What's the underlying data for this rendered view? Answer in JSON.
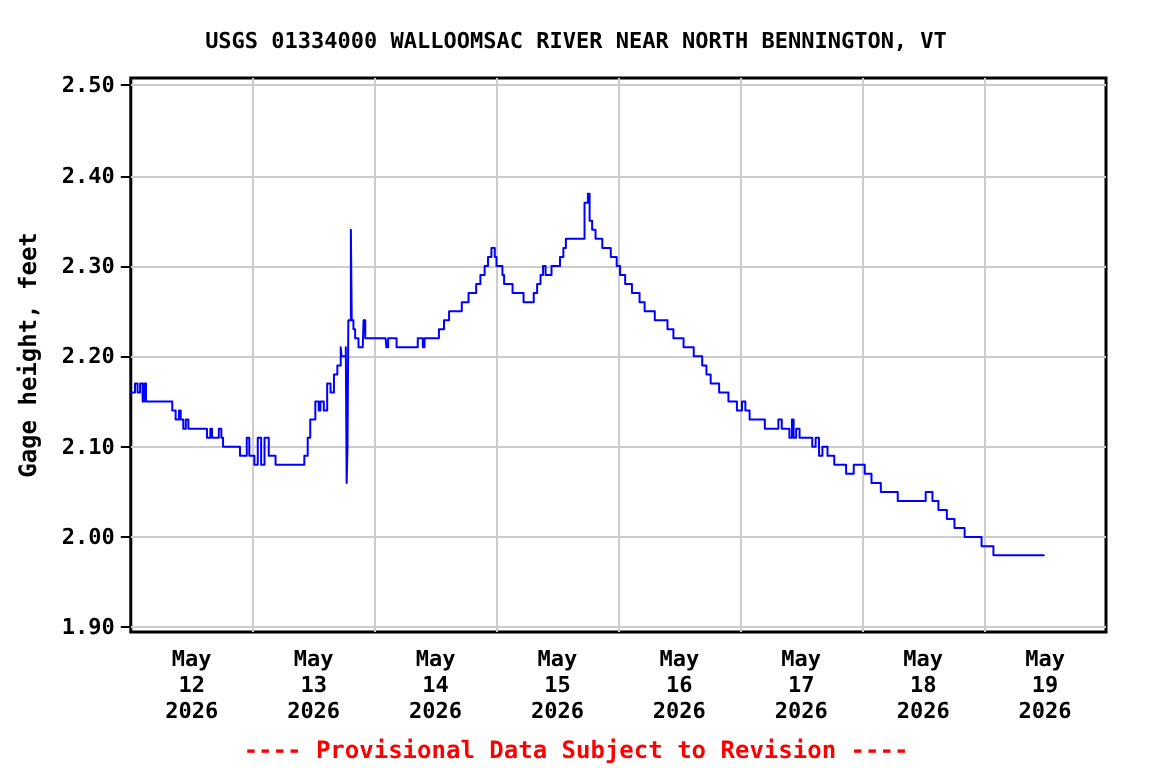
{
  "chart_data": {
    "type": "step",
    "title": "USGS 01334000 WALLOOMSAC RIVER NEAR NORTH BENNINGTON, VT",
    "ylabel": "Gage height, feet",
    "annotations": [
      "---- Provisional Data Subject to Revision ----"
    ],
    "x": [
      "2026-05-11T12:00",
      "2026-05-11T12:50",
      "2026-05-11T13:20",
      "2026-05-11T13:50",
      "2026-05-11T14:20",
      "2026-05-11T14:40",
      "2026-05-11T15:00",
      "2026-05-11T20:10",
      "2026-05-11T20:50",
      "2026-05-11T21:30",
      "2026-05-11T21:50",
      "2026-05-11T22:20",
      "2026-05-11T22:50",
      "2026-05-11T23:20",
      "2026-05-12T03:00",
      "2026-05-12T03:40",
      "2026-05-12T04:00",
      "2026-05-12T05:20",
      "2026-05-12T05:50",
      "2026-05-12T06:10",
      "2026-05-12T09:30",
      "2026-05-12T10:00",
      "2026-05-12T10:50",
      "2026-05-12T11:20",
      "2026-05-12T12:20",
      "2026-05-12T13:00",
      "2026-05-12T13:40",
      "2026-05-12T14:20",
      "2026-05-12T15:10",
      "2026-05-12T16:30",
      "2026-05-12T21:40",
      "2026-05-12T22:10",
      "2026-05-12T22:50",
      "2026-05-12T23:20",
      "2026-05-13T00:20",
      "2026-05-13T01:00",
      "2026-05-13T01:20",
      "2026-05-13T02:00",
      "2026-05-13T02:40",
      "2026-05-13T03:20",
      "2026-05-13T04:00",
      "2026-05-13T04:40",
      "2026-05-13T05:20",
      "2026-05-13T05:30",
      "2026-05-13T06:20",
      "2026-05-13T06:30",
      "2026-05-13T06:40",
      "2026-05-13T06:50",
      "2026-05-13T07:20",
      "2026-05-13T07:30",
      "2026-05-13T07:50",
      "2026-05-13T08:10",
      "2026-05-13T08:50",
      "2026-05-13T09:40",
      "2026-05-13T09:50",
      "2026-05-13T10:10",
      "2026-05-13T14:10",
      "2026-05-13T14:20",
      "2026-05-13T14:40",
      "2026-05-13T16:20",
      "2026-05-13T20:10",
      "2026-05-13T20:30",
      "2026-05-13T21:30",
      "2026-05-13T21:50",
      "2026-05-14T00:10",
      "2026-05-14T00:40",
      "2026-05-14T01:40",
      "2026-05-14T02:40",
      "2026-05-14T04:50",
      "2026-05-14T05:10",
      "2026-05-14T06:30",
      "2026-05-14T08:00",
      "2026-05-14T08:50",
      "2026-05-14T09:40",
      "2026-05-14T10:20",
      "2026-05-14T11:00",
      "2026-05-14T11:40",
      "2026-05-14T12:00",
      "2026-05-14T13:10",
      "2026-05-14T13:30",
      "2026-05-14T15:10",
      "2026-05-14T17:20",
      "2026-05-14T19:20",
      "2026-05-14T20:00",
      "2026-05-14T20:40",
      "2026-05-14T21:10",
      "2026-05-14T21:40",
      "2026-05-14T22:50",
      "2026-05-15T00:30",
      "2026-05-15T01:10",
      "2026-05-15T01:40",
      "2026-05-15T05:20",
      "2026-05-15T06:00",
      "2026-05-15T06:20",
      "2026-05-15T06:50",
      "2026-05-15T07:30",
      "2026-05-15T08:50",
      "2026-05-15T10:30",
      "2026-05-15T11:40",
      "2026-05-15T12:20",
      "2026-05-15T13:20",
      "2026-05-15T14:40",
      "2026-05-15T16:10",
      "2026-05-15T17:10",
      "2026-05-15T19:10",
      "2026-05-15T21:40",
      "2026-05-15T22:50",
      "2026-05-16T00:50",
      "2026-05-16T02:50",
      "2026-05-16T04:30",
      "2026-05-16T05:20",
      "2026-05-16T06:10",
      "2026-05-16T07:50",
      "2026-05-16T09:40",
      "2026-05-16T11:20",
      "2026-05-16T12:20",
      "2026-05-16T13:00",
      "2026-05-16T13:50",
      "2026-05-16T16:50",
      "2026-05-16T19:30",
      "2026-05-16T20:10",
      "2026-05-16T21:40",
      "2026-05-16T22:10",
      "2026-05-16T22:30",
      "2026-05-16T23:00",
      "2026-05-16T23:40",
      "2026-05-17T02:10",
      "2026-05-17T02:50",
      "2026-05-17T03:30",
      "2026-05-17T04:10",
      "2026-05-17T05:10",
      "2026-05-17T06:30",
      "2026-05-17T08:50",
      "2026-05-17T10:20",
      "2026-05-17T12:30",
      "2026-05-17T13:50",
      "2026-05-17T15:40",
      "2026-05-17T19:00",
      "2026-05-18T00:30",
      "2026-05-18T01:50",
      "2026-05-18T03:00",
      "2026-05-18T04:40",
      "2026-05-18T06:10",
      "2026-05-18T08:10",
      "2026-05-18T11:30",
      "2026-05-18T13:50",
      "2026-05-18T23:45"
    ],
    "series": [
      {
        "color": "#0000ff",
        "values": [
          2.16,
          2.17,
          2.16,
          2.17,
          2.15,
          2.17,
          2.15,
          2.14,
          2.13,
          2.14,
          2.13,
          2.12,
          2.13,
          2.12,
          2.11,
          2.12,
          2.11,
          2.12,
          2.11,
          2.1,
          2.09,
          2.09,
          2.11,
          2.09,
          2.08,
          2.11,
          2.08,
          2.11,
          2.09,
          2.08,
          2.08,
          2.09,
          2.11,
          2.13,
          2.15,
          2.14,
          2.15,
          2.14,
          2.17,
          2.16,
          2.18,
          2.19,
          2.21,
          2.2,
          2.21,
          2.06,
          2.1,
          2.24,
          2.34,
          2.24,
          2.23,
          2.22,
          2.21,
          2.21,
          2.24,
          2.22,
          2.22,
          2.21,
          2.22,
          2.21,
          2.21,
          2.22,
          2.21,
          2.22,
          2.22,
          2.23,
          2.24,
          2.25,
          2.25,
          2.26,
          2.27,
          2.28,
          2.29,
          2.3,
          2.31,
          2.32,
          2.31,
          2.3,
          2.29,
          2.28,
          2.27,
          2.26,
          2.27,
          2.28,
          2.29,
          2.3,
          2.29,
          2.3,
          2.31,
          2.32,
          2.33,
          2.37,
          2.38,
          2.35,
          2.34,
          2.33,
          2.32,
          2.31,
          2.3,
          2.29,
          2.28,
          2.27,
          2.26,
          2.25,
          2.24,
          2.23,
          2.22,
          2.21,
          2.2,
          2.19,
          2.18,
          2.17,
          2.16,
          2.15,
          2.14,
          2.15,
          2.14,
          2.13,
          2.12,
          2.13,
          2.12,
          2.11,
          2.13,
          2.11,
          2.12,
          2.11,
          2.1,
          2.11,
          2.09,
          2.1,
          2.09,
          2.08,
          2.07,
          2.08,
          2.07,
          2.06,
          2.05,
          2.04,
          2.05,
          2.04,
          2.03,
          2.02,
          2.01,
          2.0,
          1.99,
          1.98,
          1.98
        ]
      }
    ],
    "xlim": [
      "2026-05-11T12:00",
      "2026-05-19T12:00"
    ],
    "xticks": [
      {
        "value": "2026-05-12T00:00",
        "label": "May\n12\n2026"
      },
      {
        "value": "2026-05-12T12:00",
        "label": null
      },
      {
        "value": "2026-05-13T00:00",
        "label": "May\n13\n2026"
      },
      {
        "value": "2026-05-13T12:00",
        "label": null
      },
      {
        "value": "2026-05-14T00:00",
        "label": "May\n14\n2026"
      },
      {
        "value": "2026-05-14T12:00",
        "label": null
      },
      {
        "value": "2026-05-15T00:00",
        "label": "May\n15\n2026"
      },
      {
        "value": "2026-05-15T12:00",
        "label": null
      },
      {
        "value": "2026-05-16T00:00",
        "label": "May\n16\n2026"
      },
      {
        "value": "2026-05-16T12:00",
        "label": null
      },
      {
        "value": "2026-05-17T00:00",
        "label": "May\n17\n2026"
      },
      {
        "value": "2026-05-17T12:00",
        "label": null
      },
      {
        "value": "2026-05-18T00:00",
        "label": "May\n18\n2026"
      },
      {
        "value": "2026-05-18T12:00",
        "label": null
      },
      {
        "value": "2026-05-19T00:00",
        "label": "May\n19\n2026"
      }
    ],
    "ylim": [
      1.895,
      2.508
    ],
    "yticks": [
      {
        "value": 1.9,
        "label": "1.90"
      },
      {
        "value": 2.0,
        "label": "2.00"
      },
      {
        "value": 2.1,
        "label": "2.10"
      },
      {
        "value": 2.2,
        "label": "2.20"
      },
      {
        "value": 2.3,
        "label": "2.30"
      },
      {
        "value": 2.4,
        "label": "2.40"
      },
      {
        "value": 2.5,
        "label": "2.50"
      }
    ],
    "grid": true,
    "marker": "none",
    "line_style": "solid"
  }
}
